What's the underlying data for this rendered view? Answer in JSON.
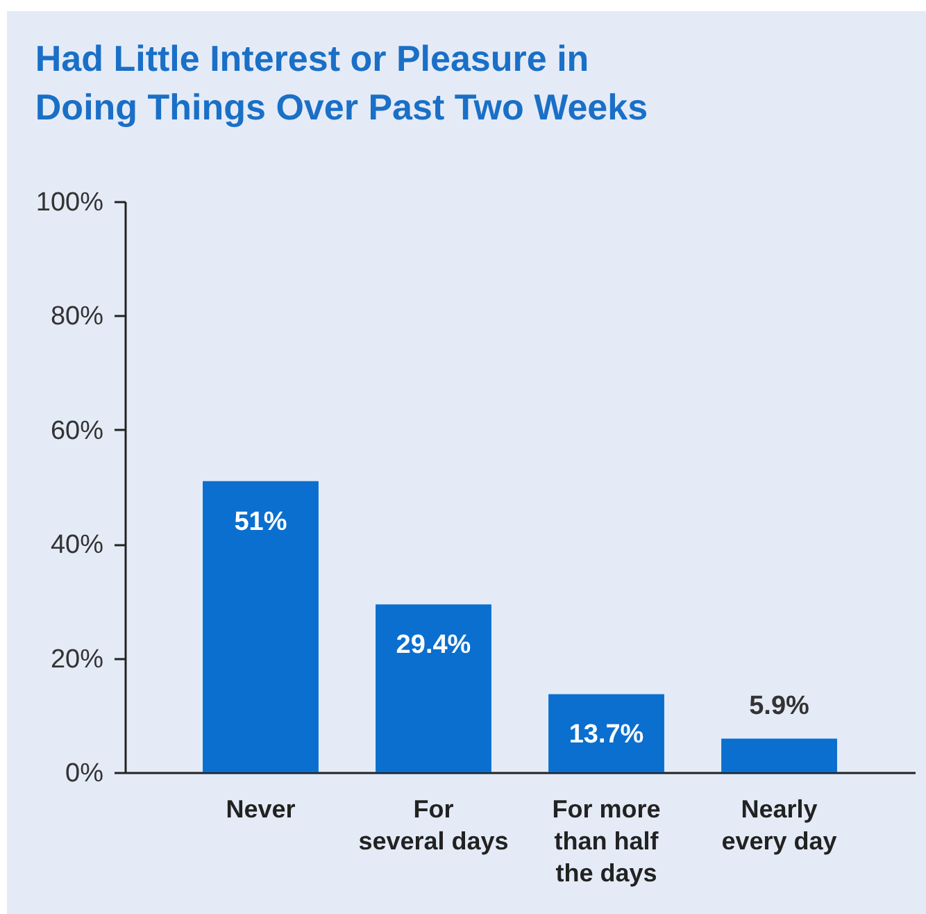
{
  "chart_data": {
    "type": "bar",
    "title": "Had Little Interest or Pleasure in Doing Things Over Past Two Weeks",
    "categories": [
      "Never",
      "For several days",
      "For more than half the days",
      "Nearly every day"
    ],
    "values": [
      51,
      29.4,
      13.7,
      5.9
    ],
    "value_labels": [
      "51%",
      "29.4%",
      "13.7%",
      "5.9%"
    ],
    "color": "#0a6fcf",
    "ylim": [
      0,
      100
    ],
    "yticks": [
      {
        "value": 0,
        "label": "0%"
      },
      {
        "value": 20,
        "label": "20%"
      },
      {
        "value": 40,
        "label": "40%"
      },
      {
        "value": 60,
        "label": "60%"
      },
      {
        "value": 80,
        "label": "80%"
      },
      {
        "value": 100,
        "label": "100%"
      }
    ],
    "grid": false
  }
}
